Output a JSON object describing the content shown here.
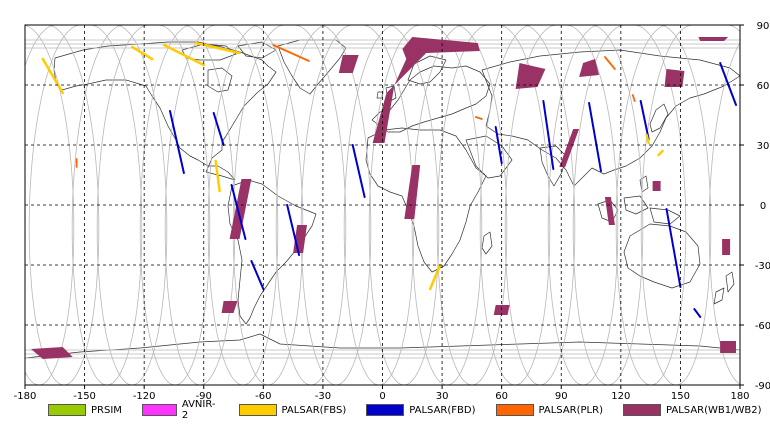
{
  "map": {
    "x_ticks": [
      "-180",
      "-150",
      "-120",
      "-90",
      "-60",
      "-30",
      "0",
      "30",
      "60",
      "90",
      "120",
      "150",
      "180"
    ],
    "y_ticks": [
      "90",
      "60",
      "30",
      "0",
      "-30",
      "-60",
      "-90"
    ],
    "colors": {
      "frame": "#000000",
      "grid": "#000000",
      "orbit": "#b8b8b8",
      "coast": "#333333"
    }
  },
  "legend": [
    {
      "label": "PRSIM",
      "color": "#99cc00"
    },
    {
      "label": "AVNIR-2",
      "color": "#ff33ff"
    },
    {
      "label": "PALSAR(FBS)",
      "color": "#ffcc00"
    },
    {
      "label": "PALSAR(FBD)",
      "color": "#0000cc"
    },
    {
      "label": "PALSAR(PLR)",
      "color": "#ff6600"
    },
    {
      "label": "PALSAR(WB1/WB2)",
      "color": "#993366"
    }
  ],
  "observations": {
    "fbd": [
      {
        "lon": [
          -107,
          -100
        ],
        "lat": [
          47,
          16
        ]
      },
      {
        "lon": [
          -85,
          -80
        ],
        "lat": [
          46,
          30
        ]
      },
      {
        "lon": [
          -76,
          -69
        ],
        "lat": [
          10,
          -17
        ]
      },
      {
        "lon": [
          -48,
          -42
        ],
        "lat": [
          0,
          -25
        ]
      },
      {
        "lon": [
          -66,
          -60
        ],
        "lat": [
          -28,
          -42
        ]
      },
      {
        "lon": [
          -15,
          -9
        ],
        "lat": [
          30,
          4
        ]
      },
      {
        "lon": [
          57,
          60
        ],
        "lat": [
          39,
          21
        ]
      },
      {
        "lon": [
          81,
          86
        ],
        "lat": [
          52,
          18
        ]
      },
      {
        "lon": [
          104,
          110
        ],
        "lat": [
          51,
          17
        ]
      },
      {
        "lon": [
          130,
          134
        ],
        "lat": [
          52,
          33
        ]
      },
      {
        "lon": [
          143,
          150
        ],
        "lat": [
          -2,
          -41
        ]
      },
      {
        "lon": [
          157,
          160
        ],
        "lat": [
          -52,
          -56
        ]
      },
      {
        "lon": [
          170,
          178
        ],
        "lat": [
          71,
          50
        ]
      }
    ],
    "fbs": [
      {
        "lon": [
          -171,
          -161
        ],
        "lat": [
          73,
          56
        ]
      },
      {
        "lon": [
          -126,
          -116
        ],
        "lat": [
          79,
          73
        ]
      },
      {
        "lon": [
          -110,
          -90
        ],
        "lat": [
          80,
          70
        ]
      },
      {
        "lon": [
          -94,
          -72
        ],
        "lat": [
          81,
          76
        ]
      },
      {
        "lon": [
          -84,
          -82
        ],
        "lat": [
          22,
          7
        ]
      },
      {
        "lon": [
          29,
          24
        ],
        "lat": [
          -30,
          -42
        ]
      },
      {
        "lon": [
          141,
          139
        ],
        "lat": [
          27,
          25
        ]
      },
      {
        "lon": [
          133,
          134
        ],
        "lat": [
          35,
          31
        ]
      }
    ],
    "plr": [
      {
        "lon": [
          -154,
          -154
        ],
        "lat": [
          23,
          19
        ]
      },
      {
        "lon": [
          -55,
          -37
        ],
        "lat": [
          80,
          72
        ]
      },
      {
        "lon": [
          112,
          117
        ],
        "lat": [
          74,
          68
        ]
      },
      {
        "lon": [
          126,
          127
        ],
        "lat": [
          55,
          52
        ]
      },
      {
        "lon": [
          47,
          50
        ],
        "lat": [
          44,
          43
        ]
      }
    ],
    "wb": [
      [
        [
          -177,
          -72
        ],
        [
          -171,
          -77
        ],
        [
          -156,
          -76
        ],
        [
          -161,
          -71
        ]
      ],
      [
        [
          -71,
          13
        ],
        [
          -66,
          13
        ],
        [
          -72,
          -17
        ],
        [
          -77,
          -17
        ]
      ],
      [
        [
          -43,
          -10
        ],
        [
          -38,
          -10
        ],
        [
          -40,
          -24
        ],
        [
          -45,
          -24
        ]
      ],
      [
        [
          -80,
          -48
        ],
        [
          -73,
          -48
        ],
        [
          -75,
          -54
        ],
        [
          -81,
          -54
        ]
      ],
      [
        [
          -20,
          75
        ],
        [
          -12,
          75
        ],
        [
          -15,
          66
        ],
        [
          -22,
          66
        ]
      ],
      [
        [
          10,
          78
        ],
        [
          15,
          84
        ],
        [
          48,
          81
        ],
        [
          49,
          77
        ],
        [
          22,
          76
        ],
        [
          2,
          56
        ],
        [
          -5,
          31
        ],
        [
          1,
          31
        ],
        [
          6,
          60
        ],
        [
          12,
          73
        ]
      ],
      [
        [
          15,
          20
        ],
        [
          19,
          20
        ],
        [
          16,
          -7
        ],
        [
          11,
          -7
        ]
      ],
      [
        [
          69,
          71
        ],
        [
          82,
          68
        ],
        [
          78,
          59
        ],
        [
          67,
          58
        ]
      ],
      [
        [
          101,
          71
        ],
        [
          107,
          73
        ],
        [
          109,
          65
        ],
        [
          99,
          64
        ]
      ],
      [
        [
          96,
          38
        ],
        [
          99,
          38
        ],
        [
          92,
          19
        ],
        [
          89,
          19
        ]
      ],
      [
        [
          112,
          4
        ],
        [
          115,
          4
        ],
        [
          117,
          -10
        ],
        [
          114,
          -10
        ]
      ],
      [
        [
          143,
          68
        ],
        [
          152,
          67
        ],
        [
          151,
          59
        ],
        [
          142,
          59
        ]
      ],
      [
        [
          57,
          -50
        ],
        [
          64,
          -50
        ],
        [
          63,
          -55
        ],
        [
          56,
          -55
        ]
      ],
      [
        [
          136,
          12
        ],
        [
          140,
          12
        ],
        [
          140,
          7
        ],
        [
          136,
          7
        ]
      ],
      [
        [
          171,
          -17
        ],
        [
          175,
          -17
        ],
        [
          175,
          -25
        ],
        [
          171,
          -25
        ]
      ],
      [
        [
          170,
          -68
        ],
        [
          178,
          -68
        ],
        [
          178,
          -74
        ],
        [
          170,
          -74
        ]
      ],
      [
        [
          159,
          84
        ],
        [
          174,
          84
        ],
        [
          172,
          82
        ],
        [
          160,
          82
        ]
      ]
    ]
  }
}
